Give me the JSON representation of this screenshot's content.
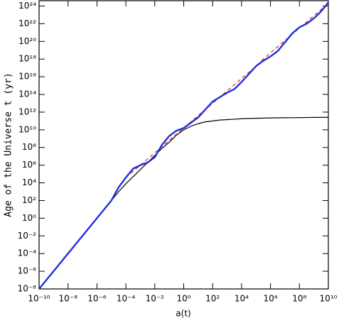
{
  "chart_data": {
    "type": "line",
    "xlabel": "a(t)",
    "ylabel": "Age of the Universe t (yr)",
    "log_x": true,
    "log_y": true,
    "xlim": [
      1e-10,
      10000000000.0
    ],
    "ylim": [
      1e-08,
      4e+24
    ],
    "xticks": [
      {
        "value": 1e-10,
        "label": "10⁻¹⁰"
      },
      {
        "value": 1e-08,
        "label": "10⁻⁸"
      },
      {
        "value": 1e-06,
        "label": "10⁻⁶"
      },
      {
        "value": 0.0001,
        "label": "10⁻⁴"
      },
      {
        "value": 0.01,
        "label": "10⁻²"
      },
      {
        "value": 1,
        "label": "10⁰"
      },
      {
        "value": 100.0,
        "label": "10²"
      },
      {
        "value": 10000.0,
        "label": "10⁴"
      },
      {
        "value": 1000000.0,
        "label": "10⁶"
      },
      {
        "value": 100000000.0,
        "label": "10⁸"
      },
      {
        "value": 10000000000.0,
        "label": "10¹⁰"
      }
    ],
    "yticks": [
      {
        "value": 1e-08,
        "label": "10⁻⁸"
      },
      {
        "value": 1e-06,
        "label": "10⁻⁶"
      },
      {
        "value": 0.0001,
        "label": "10⁻⁴"
      },
      {
        "value": 0.01,
        "label": "10⁻²"
      },
      {
        "value": 1,
        "label": "10⁰"
      },
      {
        "value": 100.0,
        "label": "10²"
      },
      {
        "value": 10000.0,
        "label": "10⁴"
      },
      {
        "value": 1000000.0,
        "label": "10⁶"
      },
      {
        "value": 100000000.0,
        "label": "10⁸"
      },
      {
        "value": 10000000000.0,
        "label": "10¹⁰"
      },
      {
        "value": 1000000000000.0,
        "label": "10¹²"
      },
      {
        "value": 100000000000000.0,
        "label": "10¹⁴"
      },
      {
        "value": 1e+16,
        "label": "10¹⁶"
      },
      {
        "value": 1e+18,
        "label": "10¹⁸"
      },
      {
        "value": 1e+20,
        "label": "10²⁰"
      },
      {
        "value": 1e+22,
        "label": "10²²"
      },
      {
        "value": 1e+24,
        "label": "10²⁴"
      }
    ],
    "x": [
      1e-10,
      3.16e-10,
      1e-09,
      3.16e-09,
      1e-08,
      3.16e-08,
      1e-07,
      3.16e-07,
      1e-06,
      3.16e-06,
      1e-05,
      3.16e-05,
      0.0001,
      0.000316,
      0.001,
      0.00316,
      0.01,
      0.0316,
      0.1,
      0.316,
      1,
      3.16,
      10,
      31.6,
      100,
      316,
      1000.0,
      3160.0,
      10000.0,
      31600.0,
      100000.0,
      316000.0,
      1000000.0,
      3160000.0,
      10000000.0,
      31600000.0,
      100000000.0,
      316000000.0,
      1000000000.0,
      3160000000.0,
      10000000000.0
    ],
    "series": [
      {
        "color": "#000000",
        "style": "solid",
        "values": [
          1e-08,
          1e-07,
          1e-06,
          1e-05,
          0.0001,
          0.001,
          0.01,
          0.1,
          1,
          10,
          100,
          1000.0,
          7940.0,
          50100.0,
          316000.0,
          2000000.0,
          12600000.0,
          79400000.0,
          398000000.0,
          2510000000.0,
          10000000000.0,
          25100000000.0,
          50100000000.0,
          79400000000.0,
          100000000000.0,
          126000000000.0,
          141000000000.0,
          158000000000.0,
          178000000000.0,
          191000000000.0,
          200000000000.0,
          209000000000.0,
          219000000000.0,
          224000000000.0,
          229000000000.0,
          234000000000.0,
          240000000000.0,
          245000000000.0,
          251000000000.0,
          251000000000.0,
          257000000000.0
        ]
      },
      {
        "color": "#e02020",
        "style": "dashed",
        "values": [
          null,
          null,
          null,
          null,
          null,
          null,
          null,
          null,
          null,
          null,
          null,
          null,
          39800.0,
          200000.0,
          1000000.0,
          5010000.0,
          25100000.0,
          126000000.0,
          631000000.0,
          3160000000.0,
          15800000000.0,
          79400000000.0,
          398000000000.0,
          2000000000000.0,
          10000000000000.0,
          50100000000000.0,
          251000000000000.0,
          1260000000000000.0,
          6310000000000000.0,
          3.16e+16,
          1.58e+17,
          1e+18,
          5.01e+18,
          2.51e+19,
          1.26e+20,
          6.31e+20,
          3.16e+21,
          1.58e+22,
          7.94e+22,
          3.98e+23,
          2e+24
        ]
      },
      {
        "color": "#1f2fe0",
        "style": "thick",
        "values": [
          1e-08,
          1e-07,
          1e-06,
          1e-05,
          0.0001,
          0.001,
          0.01,
          0.1,
          1,
          10,
          100,
          3160.0,
          39800.0,
          398000.0,
          1000000.0,
          2000000.0,
          7940000.0,
          200000000.0,
          2000000000.0,
          7940000000.0,
          15800000000.0,
          63100000000.0,
          251000000000.0,
          2000000000000.0,
          15800000000000.0,
          50100000000000.0,
          158000000000000.0,
          398000000000000.0,
          2510000000000000.0,
          2e+16,
          1.58e+17,
          6.31e+17,
          2e+18,
          7.94e+18,
          7.94e+19,
          7.94e+20,
          3.98e+21,
          1e+22,
          3.98e+22,
          2.51e+23,
          2.51e+24
        ]
      }
    ]
  }
}
